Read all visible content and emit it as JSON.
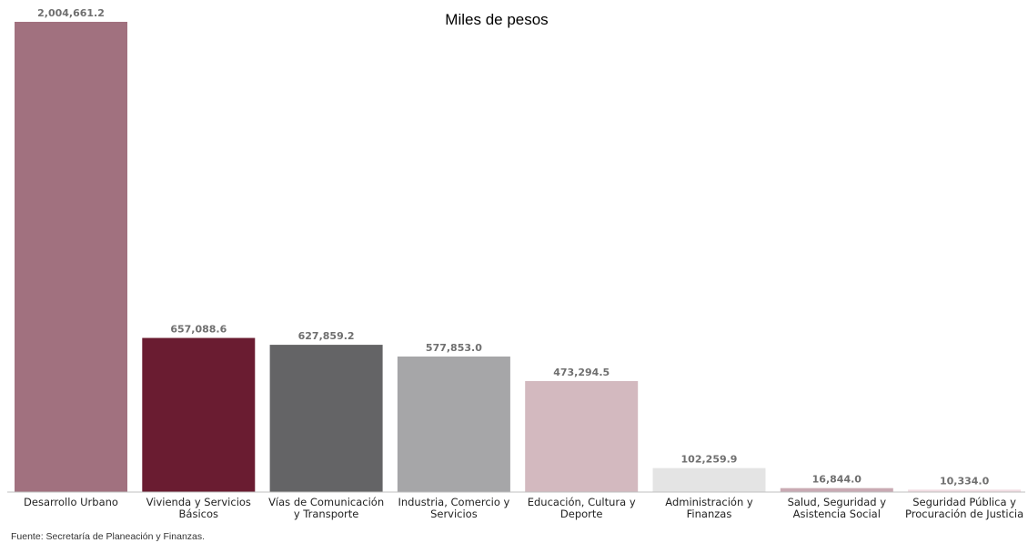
{
  "chart_data": {
    "type": "bar",
    "title": "Miles de pesos",
    "categories": [
      [
        "Desarrollo Urbano"
      ],
      [
        "Vivienda y Servicios",
        "Básicos"
      ],
      [
        "Vías de Comunicación",
        "y Transporte"
      ],
      [
        "Industria, Comercio y",
        "Servicios"
      ],
      [
        "Educación, Cultura y",
        "Deporte"
      ],
      [
        "Administración y",
        "Finanzas"
      ],
      [
        "Salud, Seguridad y",
        "Asistencia Social"
      ],
      [
        "Seguridad Pública y",
        "Procuración de Justicia"
      ]
    ],
    "values": [
      2004661.2,
      657088.6,
      627859.2,
      577853.0,
      473294.5,
      102259.9,
      16844.0,
      10334.0
    ],
    "value_labels": [
      "2,004,661.2",
      "657,088.6",
      "627,859.2",
      "577,853.0",
      "473,294.5",
      "102,259.9",
      "16,844.0",
      "10,334.0"
    ],
    "colors": [
      "#a1717f",
      "#6a1c31",
      "#646466",
      "#a6a6a8",
      "#d3b9bf",
      "#e4e4e4",
      "#c9aab3",
      "#f1dde2"
    ],
    "ylim": [
      0,
      2004661.2
    ],
    "grid": false,
    "legend": "none",
    "xlabel": "",
    "ylabel": ""
  },
  "source_note": "Fuente: Secretaría de Planeación y Finanzas."
}
